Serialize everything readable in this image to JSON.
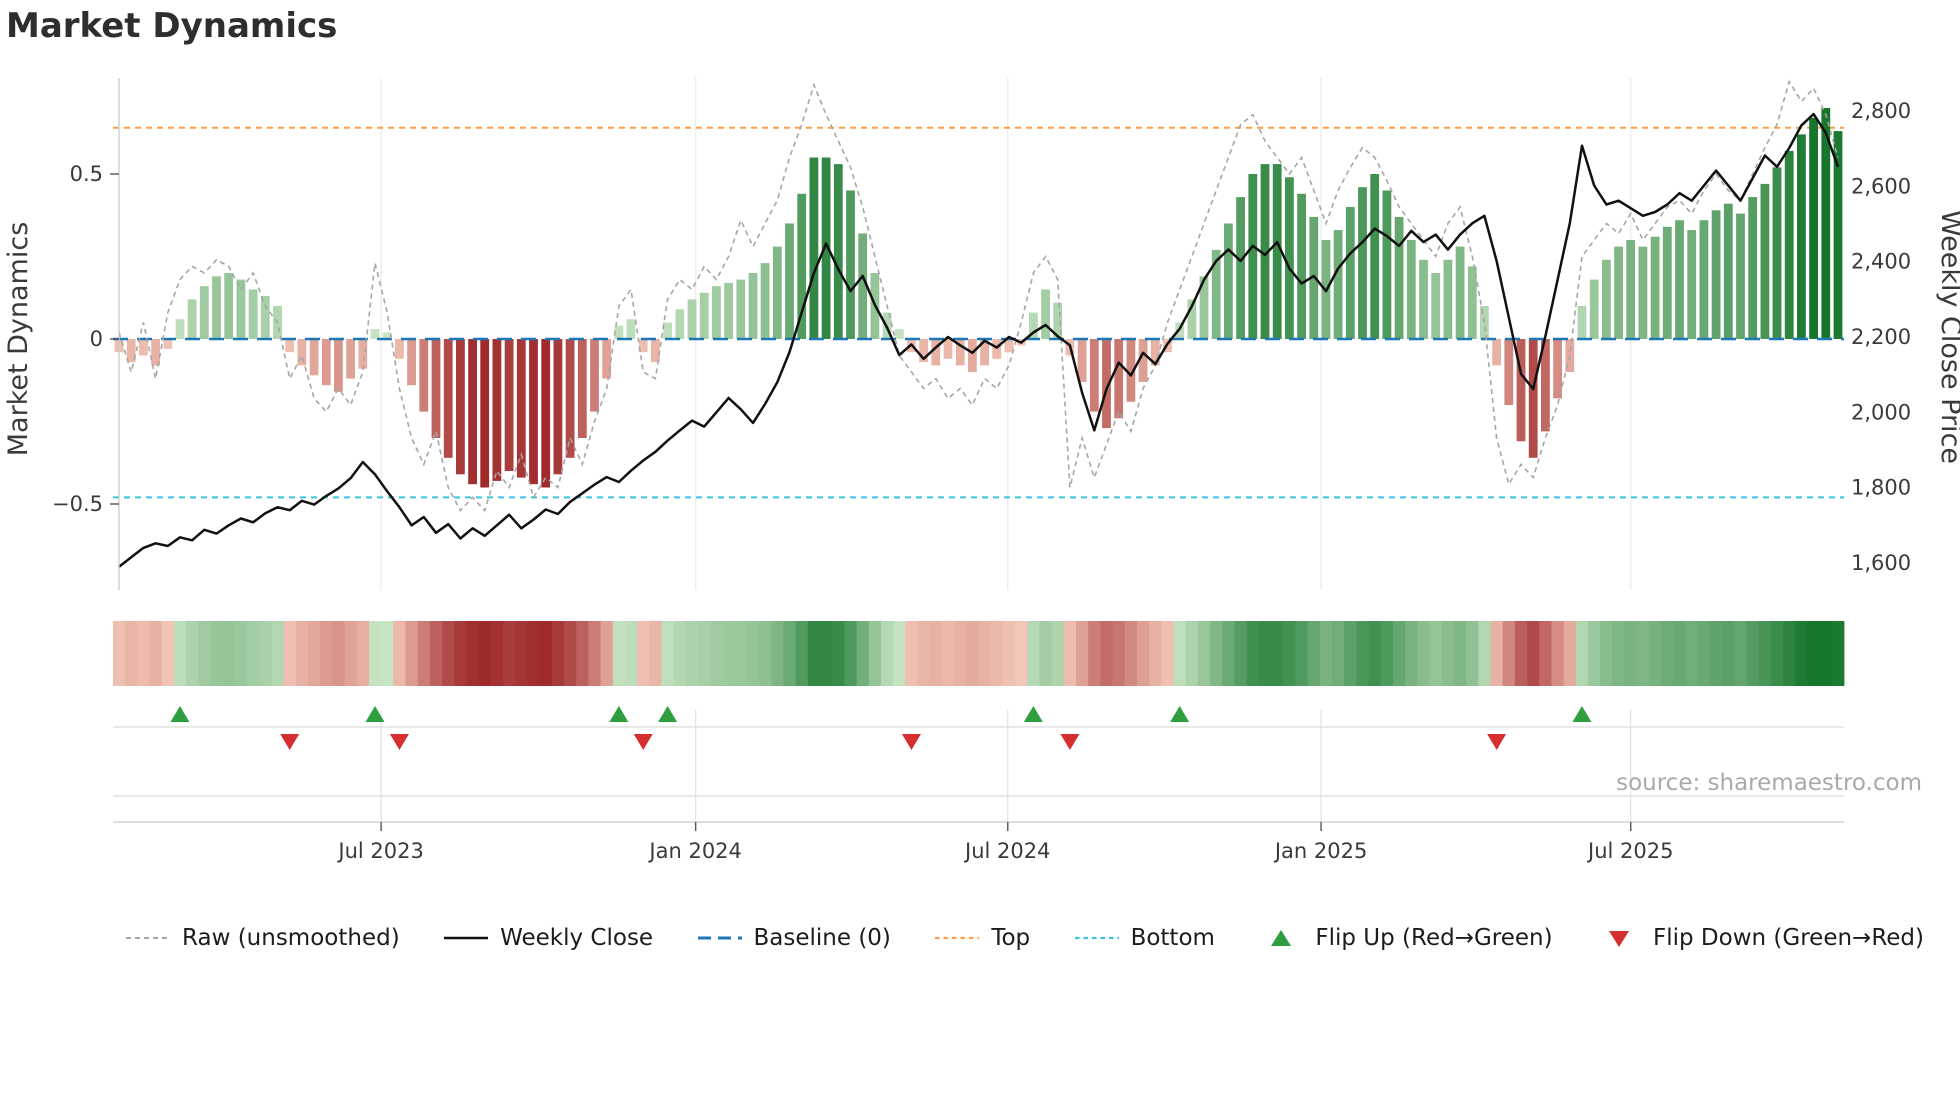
{
  "title": "Market Dynamics",
  "source": "source: sharemaestro.com",
  "colors": {
    "raw_line": "#a6a6a6",
    "close_line": "#111111",
    "baseline": "#1f77b4",
    "top_line": "#ff9d45",
    "bottom_line": "#38c5dc",
    "flip_up": "#2e9e3f",
    "flip_down": "#d62f2f",
    "pos_light": "#cde7c8",
    "pos_dark": "#16762c",
    "neg_light": "#f7cebe",
    "neg_dark": "#96181b",
    "grid": "#ececec",
    "axis_text": "#3a3a3a",
    "muted_text": "#a9a9a9"
  },
  "legend": {
    "items": [
      {
        "key": "raw",
        "label": "Raw (unsmoothed)"
      },
      {
        "key": "close",
        "label": "Weekly Close"
      },
      {
        "key": "baseline",
        "label": "Baseline (0)"
      },
      {
        "key": "top",
        "label": "Top"
      },
      {
        "key": "bottom",
        "label": "Bottom"
      },
      {
        "key": "flip_up",
        "label": "Flip Up (Red→Green)"
      },
      {
        "key": "flip_down",
        "label": "Flip Down (Green→Red)"
      }
    ]
  },
  "chart_data": {
    "type": "bar",
    "title": "Market Dynamics",
    "x": {
      "unit": "week",
      "n_points": 142,
      "ticks": [
        {
          "week": 21.5,
          "label": "Jul 2023"
        },
        {
          "week": 47.3,
          "label": "Jan 2024"
        },
        {
          "week": 72.9,
          "label": "Jul 2024"
        },
        {
          "week": 98.6,
          "label": "Jan 2025"
        },
        {
          "week": 124.0,
          "label": "Jul 2025"
        }
      ]
    },
    "y_left": {
      "label": "Market Dynamics",
      "range": [
        -0.75,
        0.8
      ],
      "ticks": [
        {
          "v": 0.5,
          "label": "0.5"
        },
        {
          "v": 0.0,
          "label": "0"
        },
        {
          "v": -0.5,
          "label": "−0.5"
        }
      ]
    },
    "y_right": {
      "label": "Weekly Close Price",
      "range": [
        1500,
        2900
      ],
      "ticks": [
        {
          "v": 1600,
          "label": "1,600"
        },
        {
          "v": 1800,
          "label": "1,800"
        },
        {
          "v": 2000,
          "label": "2,000"
        },
        {
          "v": 2200,
          "label": "2,200"
        },
        {
          "v": 2400,
          "label": "2,400"
        },
        {
          "v": 2600,
          "label": "2,600"
        },
        {
          "v": 2800,
          "label": "2,800"
        }
      ]
    },
    "reference_lines": {
      "baseline": 0,
      "top": 0.64,
      "bottom": -0.48
    },
    "heatmap_strip": true,
    "series": [
      {
        "name": "Dynamics (smoothed, bars and heatmap)",
        "type": "bar",
        "axis": "left",
        "values": [
          -0.04,
          -0.07,
          -0.05,
          -0.08,
          -0.03,
          0.06,
          0.12,
          0.16,
          0.19,
          0.2,
          0.18,
          0.15,
          0.13,
          0.1,
          -0.04,
          -0.08,
          -0.11,
          -0.14,
          -0.16,
          -0.12,
          -0.09,
          0.03,
          0.02,
          -0.06,
          -0.14,
          -0.22,
          -0.3,
          -0.36,
          -0.41,
          -0.44,
          -0.45,
          -0.43,
          -0.4,
          -0.42,
          -0.44,
          -0.45,
          -0.41,
          -0.36,
          -0.3,
          -0.22,
          -0.12,
          0.04,
          0.06,
          -0.04,
          -0.07,
          0.05,
          0.09,
          0.12,
          0.14,
          0.16,
          0.17,
          0.18,
          0.2,
          0.23,
          0.28,
          0.35,
          0.44,
          0.55,
          0.55,
          0.53,
          0.45,
          0.32,
          0.2,
          0.08,
          0.03,
          -0.04,
          -0.07,
          -0.08,
          -0.06,
          -0.08,
          -0.1,
          -0.08,
          -0.06,
          -0.04,
          -0.02,
          0.08,
          0.15,
          0.11,
          -0.05,
          -0.13,
          -0.22,
          -0.27,
          -0.24,
          -0.19,
          -0.13,
          -0.08,
          -0.04,
          0.05,
          0.12,
          0.19,
          0.27,
          0.35,
          0.43,
          0.5,
          0.53,
          0.53,
          0.49,
          0.44,
          0.37,
          0.3,
          0.33,
          0.4,
          0.46,
          0.5,
          0.45,
          0.37,
          0.3,
          0.24,
          0.2,
          0.24,
          0.28,
          0.22,
          0.1,
          -0.08,
          -0.2,
          -0.31,
          -0.36,
          -0.28,
          -0.18,
          -0.1,
          0.1,
          0.18,
          0.24,
          0.28,
          0.3,
          0.28,
          0.31,
          0.34,
          0.36,
          0.33,
          0.36,
          0.39,
          0.41,
          0.38,
          0.43,
          0.47,
          0.52,
          0.57,
          0.62,
          0.67,
          0.7,
          0.63
        ]
      },
      {
        "name": "Raw (unsmoothed)",
        "type": "line",
        "style": "dashed",
        "axis": "left",
        "values": [
          0.02,
          -0.1,
          0.05,
          -0.12,
          0.08,
          0.18,
          0.22,
          0.2,
          0.24,
          0.22,
          0.15,
          0.2,
          0.1,
          0.05,
          -0.12,
          -0.05,
          -0.18,
          -0.22,
          -0.15,
          -0.2,
          -0.1,
          0.23,
          0.08,
          -0.15,
          -0.3,
          -0.38,
          -0.28,
          -0.45,
          -0.52,
          -0.48,
          -0.52,
          -0.4,
          -0.45,
          -0.35,
          -0.48,
          -0.42,
          -0.45,
          -0.3,
          -0.38,
          -0.25,
          -0.15,
          0.1,
          0.15,
          -0.1,
          -0.12,
          0.12,
          0.18,
          0.15,
          0.22,
          0.18,
          0.25,
          0.36,
          0.28,
          0.35,
          0.42,
          0.55,
          0.65,
          0.77,
          0.68,
          0.6,
          0.52,
          0.4,
          0.25,
          0.1,
          -0.05,
          -0.1,
          -0.15,
          -0.12,
          -0.18,
          -0.15,
          -0.2,
          -0.12,
          -0.15,
          -0.08,
          0.05,
          0.2,
          0.25,
          0.18,
          -0.45,
          -0.3,
          -0.42,
          -0.32,
          -0.22,
          -0.28,
          -0.15,
          -0.08,
          0.05,
          0.15,
          0.25,
          0.35,
          0.45,
          0.55,
          0.65,
          0.68,
          0.6,
          0.55,
          0.5,
          0.55,
          0.45,
          0.35,
          0.45,
          0.52,
          0.58,
          0.55,
          0.48,
          0.4,
          0.35,
          0.3,
          0.25,
          0.35,
          0.4,
          0.25,
          0.05,
          -0.3,
          -0.44,
          -0.38,
          -0.42,
          -0.3,
          -0.2,
          -0.05,
          0.25,
          0.3,
          0.35,
          0.32,
          0.38,
          0.3,
          0.35,
          0.4,
          0.42,
          0.38,
          0.45,
          0.5,
          0.45,
          0.42,
          0.5,
          0.58,
          0.65,
          0.78,
          0.72,
          0.76,
          0.68,
          0.55
        ]
      },
      {
        "name": "Weekly Close",
        "type": "line",
        "axis": "right",
        "values": [
          1590,
          1615,
          1640,
          1652,
          1645,
          1668,
          1660,
          1688,
          1678,
          1700,
          1718,
          1708,
          1732,
          1748,
          1740,
          1765,
          1755,
          1778,
          1798,
          1825,
          1868,
          1835,
          1790,
          1748,
          1700,
          1722,
          1680,
          1703,
          1665,
          1692,
          1672,
          1700,
          1728,
          1692,
          1715,
          1742,
          1730,
          1762,
          1785,
          1808,
          1828,
          1815,
          1845,
          1872,
          1895,
          1925,
          1952,
          1978,
          1962,
          2000,
          2038,
          2008,
          1972,
          2022,
          2080,
          2160,
          2265,
          2370,
          2448,
          2380,
          2322,
          2362,
          2285,
          2225,
          2152,
          2180,
          2142,
          2172,
          2200,
          2178,
          2158,
          2190,
          2172,
          2200,
          2185,
          2212,
          2232,
          2202,
          2178,
          2052,
          1952,
          2062,
          2132,
          2098,
          2158,
          2128,
          2182,
          2222,
          2282,
          2352,
          2402,
          2432,
          2402,
          2442,
          2418,
          2452,
          2382,
          2342,
          2362,
          2322,
          2382,
          2422,
          2452,
          2488,
          2468,
          2442,
          2482,
          2452,
          2472,
          2432,
          2472,
          2502,
          2522,
          2402,
          2252,
          2102,
          2062,
          2202,
          2352,
          2502,
          2708,
          2602,
          2552,
          2562,
          2542,
          2522,
          2532,
          2552,
          2582,
          2562,
          2602,
          2642,
          2602,
          2562,
          2622,
          2682,
          2652,
          2702,
          2762,
          2792,
          2742,
          2652
        ]
      }
    ],
    "flip_up_week_index": [
      5,
      21,
      41,
      45,
      75,
      87,
      120
    ],
    "flip_down_week_index": [
      14,
      23,
      43,
      65,
      78,
      113
    ]
  }
}
